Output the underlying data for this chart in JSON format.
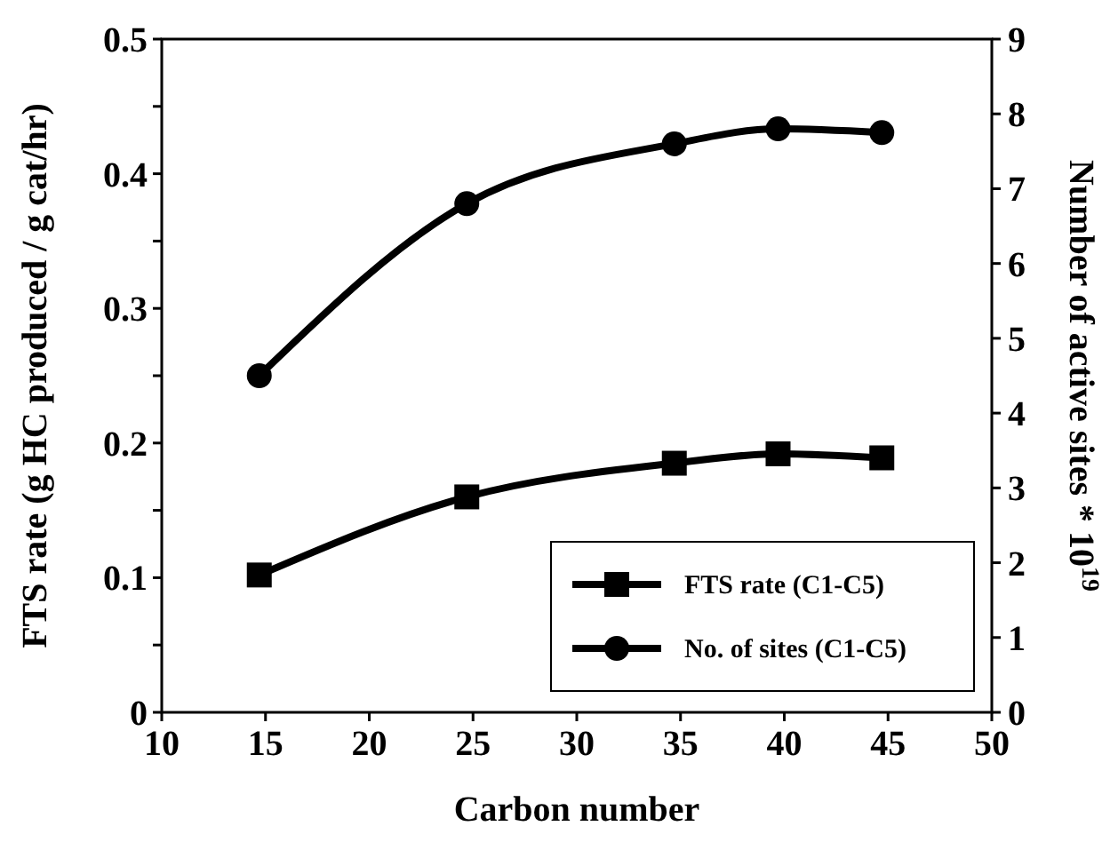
{
  "chart_data": {
    "type": "line",
    "xlabel": "Carbon number",
    "ylabel": "FTS rate (g HC produced / g cat/hr)",
    "y2label": "Number of active sites * 10$^{19}$",
    "x": [
      14.7,
      24.7,
      34.7,
      39.7,
      44.7
    ],
    "xlim": [
      10,
      50
    ],
    "xticks": [
      10,
      15,
      20,
      25,
      30,
      35,
      40,
      45,
      50
    ],
    "ylim": [
      0,
      0.5
    ],
    "yticks": [
      0,
      {
        "value": 0.05,
        "label": null
      },
      0.1,
      {
        "value": 0.15,
        "label": null
      },
      0.2,
      {
        "value": 0.25,
        "label": null
      },
      0.3,
      {
        "value": 0.35,
        "label": null
      },
      0.4,
      {
        "value": 0.45,
        "label": null
      },
      0.5
    ],
    "y2lim": [
      0,
      9
    ],
    "y2ticks": [
      0,
      1,
      2,
      3,
      4,
      5,
      6,
      7,
      8,
      9
    ],
    "series": [
      {
        "name": "FTS rate (C1-C5)",
        "color": "#000000",
        "marker": "square",
        "values": [
          0.102,
          0.16,
          0.185,
          0.192,
          0.189
        ]
      },
      {
        "name": "No. of sites (C1-C5)",
        "color": "#000000",
        "marker": "circle",
        "axis": "y2",
        "values": [
          4.5,
          6.8,
          7.6,
          7.8,
          7.75
        ]
      }
    ],
    "legend": "bottom right",
    "grid": false,
    "line_style": "solid"
  }
}
